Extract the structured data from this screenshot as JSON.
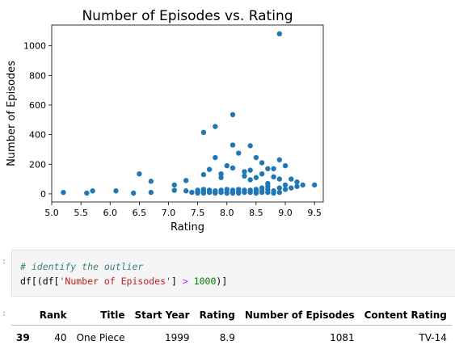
{
  "chart_data": {
    "type": "scatter",
    "title": "Number of Episodes vs. Rating",
    "xlabel": "Rating",
    "ylabel": "Number of Episodes",
    "xlim": [
      5.0,
      9.65
    ],
    "ylim": [
      -55,
      1140
    ],
    "xticks": [
      "5.0",
      "5.5",
      "6.0",
      "6.5",
      "7.0",
      "7.5",
      "8.0",
      "8.5",
      "9.0",
      "9.5"
    ],
    "yticks": [
      "0",
      "200",
      "400",
      "600",
      "800",
      "1000"
    ],
    "grid": false,
    "color": "#1f77b4",
    "x": [
      5.2,
      5.6,
      5.7,
      6.1,
      6.4,
      6.5,
      6.7,
      6.7,
      7.1,
      7.1,
      7.3,
      7.3,
      7.4,
      7.5,
      7.5,
      7.5,
      7.6,
      7.6,
      7.6,
      7.7,
      7.7,
      7.7,
      7.8,
      7.8,
      7.8,
      7.9,
      7.9,
      7.9,
      8.0,
      8.0,
      8.0,
      8.0,
      8.1,
      8.1,
      8.1,
      8.1,
      8.1,
      8.2,
      8.2,
      8.2,
      8.3,
      8.3,
      8.3,
      8.4,
      8.4,
      8.4,
      8.4,
      8.4,
      8.5,
      8.5,
      8.5,
      8.5,
      8.5,
      8.6,
      8.6,
      8.6,
      8.6,
      8.7,
      8.7,
      8.7,
      8.7,
      8.8,
      8.8,
      8.8,
      8.9,
      8.9,
      8.9,
      8.9,
      9.0,
      9.0,
      9.0,
      9.1,
      9.1,
      9.2,
      9.2,
      9.3,
      9.5,
      7.6,
      7.6,
      7.8,
      7.8,
      7.9,
      8.0,
      8.1,
      8.2,
      8.3,
      8.6,
      8.7,
      8.8,
      8.9
    ],
    "y": [
      10,
      5,
      20,
      20,
      5,
      135,
      10,
      85,
      24,
      60,
      20,
      90,
      10,
      25,
      5,
      15,
      415,
      130,
      15,
      165,
      25,
      10,
      455,
      245,
      20,
      135,
      25,
      10,
      190,
      30,
      10,
      5,
      535,
      330,
      175,
      25,
      5,
      275,
      30,
      15,
      120,
      25,
      10,
      325,
      160,
      95,
      25,
      10,
      245,
      110,
      30,
      20,
      5,
      210,
      135,
      40,
      10,
      170,
      70,
      30,
      10,
      170,
      115,
      20,
      1081,
      230,
      100,
      40,
      190,
      60,
      30,
      100,
      40,
      80,
      50,
      60,
      60,
      5,
      30,
      10,
      5,
      110,
      5,
      20,
      5,
      150,
      20,
      50,
      5,
      10
    ]
  },
  "code_cell": {
    "prompt": ":",
    "comment": "# identify the outlier",
    "line_parts": {
      "p1": "df[(df[",
      "p2": "'Number of Episodes'",
      "p3": "] ",
      "p4": ">",
      "p5": " ",
      "p6": "1000",
      "p7": ")]"
    }
  },
  "output_prompt": ":",
  "table": {
    "columns": [
      "Rank",
      "Title",
      "Start Year",
      "Rating",
      "Number of Episodes",
      "Content Rating"
    ],
    "rows": [
      {
        "index": "39",
        "cells": [
          "40",
          "One Piece",
          "1999",
          "8.9",
          "1081",
          "TV-14"
        ]
      }
    ]
  }
}
